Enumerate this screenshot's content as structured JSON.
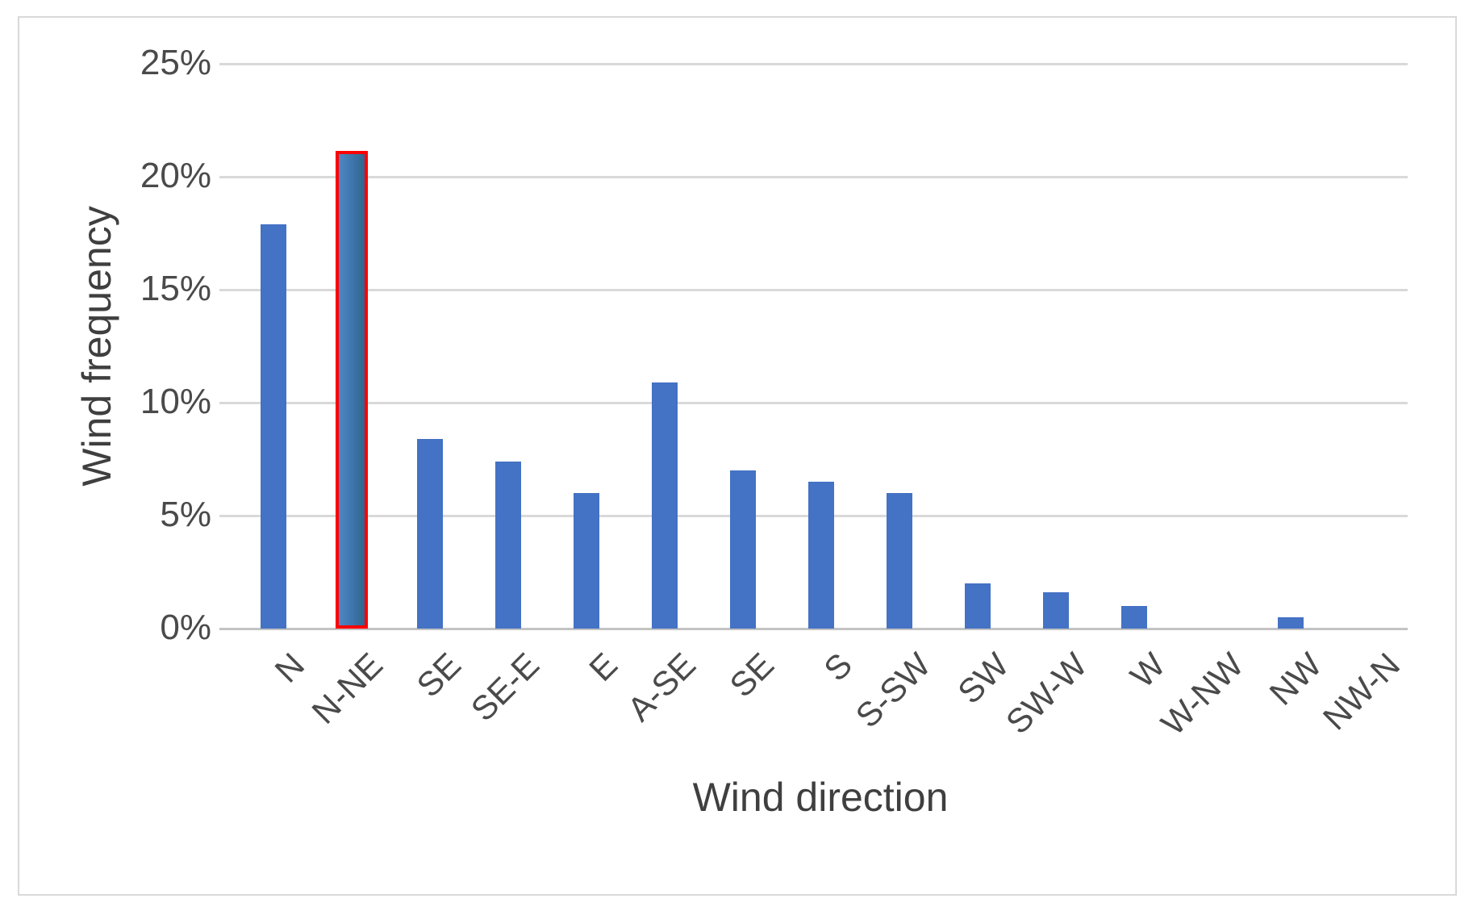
{
  "chart_data": {
    "type": "bar",
    "title": "",
    "xlabel": "Wind direction",
    "ylabel": "Wind frequency",
    "categories": [
      "N",
      "N-NE",
      "SE",
      "SE-E",
      "E",
      "A-SE",
      "SE",
      "S",
      "S-SW",
      "SW",
      "SW-W",
      "W",
      "W-NW",
      "NW",
      "NW-N"
    ],
    "values": [
      17.9,
      21.0,
      8.4,
      7.4,
      6.0,
      10.9,
      7.0,
      6.5,
      6.0,
      2.0,
      1.6,
      1.0,
      0,
      0.5,
      0
    ],
    "unit": "%",
    "ylim": [
      0,
      25
    ],
    "ytick_step": 5,
    "ytick_labels": [
      "0%",
      "5%",
      "10%",
      "15%",
      "20%",
      "25%"
    ],
    "grid": true,
    "legend": false,
    "highlighted_category": "N-NE",
    "highlighted_index": 1,
    "bar_color": "#4472C4",
    "highlight_border_color": "#FF0000",
    "highlight_gradient_start": "#4F87C5",
    "highlight_gradient_end": "#2F6590",
    "gridline_color": "#d9d9d9",
    "text_color": "#4a4a4a"
  }
}
